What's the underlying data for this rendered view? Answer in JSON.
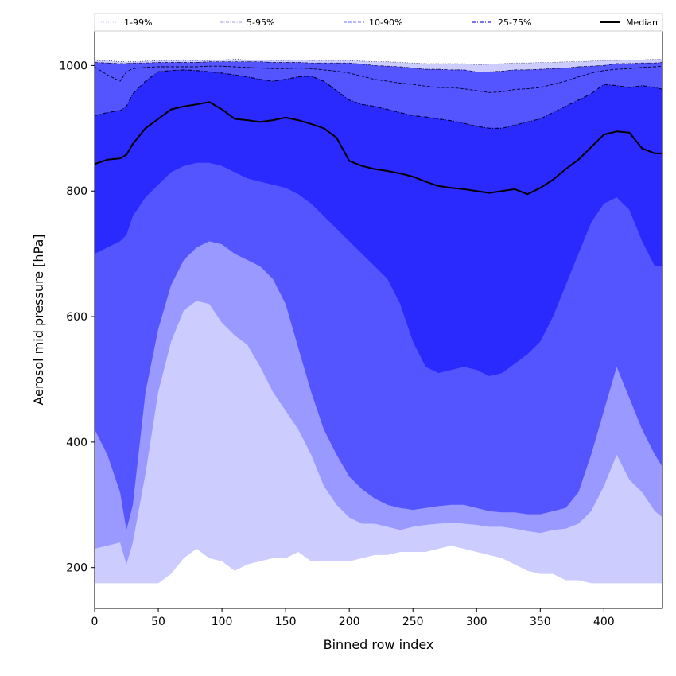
{
  "chart_data": {
    "type": "area",
    "title": "",
    "xlabel": "Binned row index",
    "ylabel": "Aerosol mid pressure [hPa]",
    "xlim": [
      0,
      446
    ],
    "ylim": [
      135,
      1055
    ],
    "x_ticks": [
      0,
      50,
      100,
      150,
      200,
      250,
      300,
      350,
      400
    ],
    "y_ticks": [
      200,
      400,
      600,
      800,
      1000
    ],
    "floor_value": 175,
    "grid": false,
    "legend_position": "top, above axes (single row)",
    "legend": [
      {
        "label": "1-99%",
        "style": "thin dotted line"
      },
      {
        "label": "5-95%",
        "style": "thin dash-dot line"
      },
      {
        "label": "10-90%",
        "style": "dashed line"
      },
      {
        "label": "25-75%",
        "style": "dash-dot line"
      },
      {
        "label": "Median",
        "style": "solid black line"
      }
    ],
    "x": [
      0,
      10,
      20,
      25,
      30,
      40,
      50,
      60,
      70,
      80,
      90,
      100,
      110,
      120,
      130,
      140,
      150,
      160,
      170,
      180,
      190,
      200,
      210,
      220,
      230,
      240,
      250,
      260,
      270,
      280,
      290,
      300,
      310,
      320,
      330,
      340,
      350,
      360,
      370,
      380,
      390,
      400,
      410,
      420,
      430,
      440,
      446
    ],
    "bands": [
      {
        "name": "1-99%",
        "fill": "#ccccff",
        "lower": [
          175,
          175,
          175,
          175,
          175,
          175,
          175,
          190,
          215,
          230,
          215,
          210,
          195,
          205,
          210,
          215,
          215,
          225,
          210,
          210,
          210,
          210,
          215,
          220,
          220,
          225,
          225,
          225,
          230,
          235,
          230,
          225,
          220,
          215,
          205,
          195,
          190,
          190,
          180,
          180,
          175,
          175,
          175,
          175,
          175,
          175,
          175
        ],
        "upper": [
          1008,
          1008,
          1006,
          1006,
          1006,
          1007,
          1008,
          1008,
          1008,
          1008,
          1008,
          1009,
          1010,
          1009,
          1009,
          1008,
          1008,
          1009,
          1008,
          1008,
          1008,
          1008,
          1007,
          1006,
          1006,
          1005,
          1004,
          1003,
          1003,
          1003,
          1003,
          1001,
          1002,
          1003,
          1004,
          1004,
          1005,
          1005,
          1006,
          1006,
          1007,
          1008,
          1008,
          1009,
          1009,
          1010,
          1010
        ]
      },
      {
        "name": "5-95%",
        "fill": "#9999ff",
        "lower": [
          230,
          235,
          240,
          205,
          240,
          350,
          480,
          560,
          610,
          625,
          620,
          590,
          570,
          555,
          520,
          480,
          450,
          420,
          380,
          330,
          300,
          280,
          270,
          270,
          265,
          260,
          265,
          268,
          270,
          272,
          270,
          268,
          265,
          265,
          262,
          258,
          255,
          260,
          262,
          270,
          290,
          330,
          380,
          340,
          320,
          290,
          280
        ],
        "upper": [
          1005,
          1004,
          1003,
          1003,
          1004,
          1004,
          1005,
          1005,
          1005,
          1005,
          1006,
          1006,
          1006,
          1006,
          1006,
          1005,
          1005,
          1005,
          1004,
          1004,
          1004,
          1004,
          1002,
          1000,
          999,
          998,
          996,
          994,
          994,
          993,
          993,
          990,
          990,
          991,
          993,
          993,
          994,
          995,
          996,
          998,
          999,
          1000,
          1003,
          1003,
          1004,
          1004,
          1005
        ]
      },
      {
        "name": "10-90%",
        "fill": "#5555ff",
        "lower": [
          420,
          380,
          320,
          260,
          300,
          480,
          580,
          650,
          690,
          710,
          720,
          715,
          700,
          690,
          680,
          660,
          620,
          550,
          480,
          420,
          380,
          345,
          325,
          310,
          300,
          295,
          292,
          295,
          298,
          300,
          300,
          295,
          290,
          288,
          288,
          285,
          285,
          290,
          295,
          320,
          380,
          450,
          520,
          470,
          420,
          380,
          360
        ]
      },
      {
        "name": "25-75%",
        "fill": "#2a2aff",
        "lower": [
          700,
          710,
          720,
          730,
          760,
          790,
          810,
          830,
          840,
          845,
          845,
          840,
          830,
          820,
          815,
          810,
          805,
          795,
          780,
          760,
          740,
          720,
          700,
          680,
          660,
          620,
          560,
          520,
          510,
          515,
          520,
          515,
          505,
          510,
          525,
          540,
          560,
          600,
          650,
          700,
          750,
          780,
          790,
          770,
          720,
          680,
          680
        ],
        "upper": [
          920,
          925,
          928,
          935,
          955,
          975,
          990,
          992,
          993,
          992,
          990,
          988,
          985,
          982,
          978,
          975,
          978,
          982,
          983,
          975,
          960,
          945,
          938,
          935,
          930,
          925,
          920,
          918,
          915,
          912,
          908,
          903,
          900,
          900,
          905,
          910,
          915,
          925,
          935,
          945,
          955,
          970,
          968,
          965,
          968,
          965,
          962
        ]
      }
    ],
    "band_outlines": [
      {
        "name": "10-90% upper",
        "values": [
          998,
          985,
          975,
          990,
          995,
          997,
          998,
          998,
          998,
          998,
          999,
          999,
          998,
          997,
          996,
          995,
          995,
          996,
          995,
          993,
          991,
          988,
          983,
          978,
          975,
          972,
          970,
          967,
          965,
          965,
          963,
          960,
          957,
          958,
          962,
          963,
          965,
          970,
          975,
          982,
          988,
          992,
          994,
          995,
          997,
          998,
          999
        ]
      }
    ],
    "series": [
      {
        "name": "Median",
        "color": "#000000",
        "values": [
          843,
          850,
          852,
          858,
          875,
          900,
          915,
          930,
          935,
          938,
          942,
          930,
          915,
          913,
          910,
          913,
          917,
          913,
          907,
          900,
          885,
          848,
          840,
          835,
          832,
          828,
          823,
          815,
          808,
          805,
          803,
          800,
          797,
          800,
          803,
          795,
          805,
          818,
          835,
          850,
          870,
          890,
          895,
          893,
          868,
          860,
          860
        ]
      }
    ]
  }
}
